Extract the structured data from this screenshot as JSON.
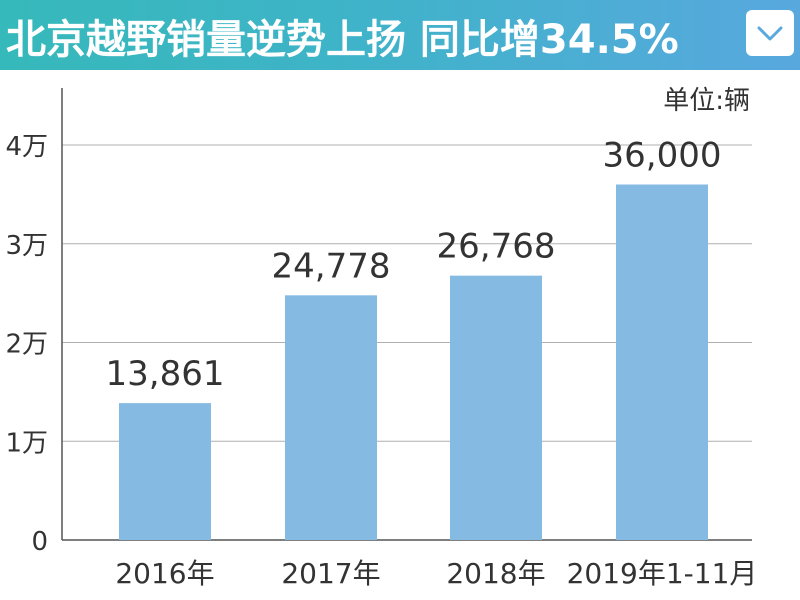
{
  "header": {
    "title": "北京越野销量逆势上扬  同比增34.5%",
    "dropdown_icon": "chevron-down-icon"
  },
  "colors": {
    "bar": "#85bbe3",
    "grid": "#b0b0b0",
    "axis": "#555555",
    "text": "#333333"
  },
  "chart_data": {
    "type": "bar",
    "unit": "单位:辆",
    "categories": [
      "2016年",
      "2017年",
      "2018年",
      "2019年1-11月"
    ],
    "values": [
      13861,
      24778,
      26768,
      36000
    ],
    "value_labels": [
      "13,861",
      "24,778",
      "26,768",
      "36,000"
    ],
    "yticks": [
      0,
      10000,
      20000,
      30000,
      40000
    ],
    "ytick_labels": [
      "0",
      "1万",
      "2万",
      "3万",
      "4万"
    ],
    "ylim": [
      0,
      40000
    ],
    "grid": true
  }
}
